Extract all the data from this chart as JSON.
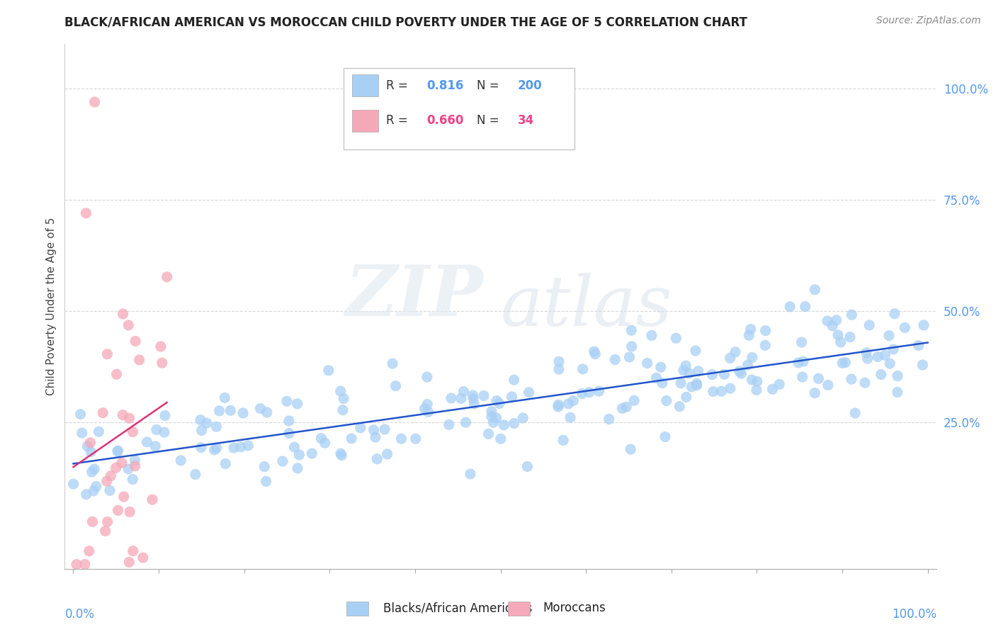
{
  "title": "BLACK/AFRICAN AMERICAN VS MOROCCAN CHILD POVERTY UNDER THE AGE OF 5 CORRELATION CHART",
  "source": "Source: ZipAtlas.com",
  "ylabel": "Child Poverty Under the Age of 5",
  "ytick_labels": [
    "",
    "25.0%",
    "50.0%",
    "75.0%",
    "100.0%"
  ],
  "ytick_values": [
    0.0,
    0.25,
    0.5,
    0.75,
    1.0
  ],
  "xlim": [
    -0.01,
    1.01
  ],
  "ylim": [
    -0.08,
    1.1
  ],
  "blue_R": 0.816,
  "blue_N": 200,
  "pink_R": 0.66,
  "pink_N": 34,
  "blue_color": "#a8d0f5",
  "pink_color": "#f5a8b8",
  "blue_line_color": "#2255cc",
  "pink_line_color": "#dd3377",
  "watermark_zip": "ZIP",
  "watermark_atlas": "atlas",
  "legend_label_blue": "Blacks/African Americans",
  "legend_label_pink": "Moroccans",
  "background_color": "#ffffff",
  "grid_color": "#d8d8d8",
  "title_color": "#222222",
  "axis_label_color": "#444444",
  "tick_color": "#5599ee",
  "source_color": "#888888"
}
